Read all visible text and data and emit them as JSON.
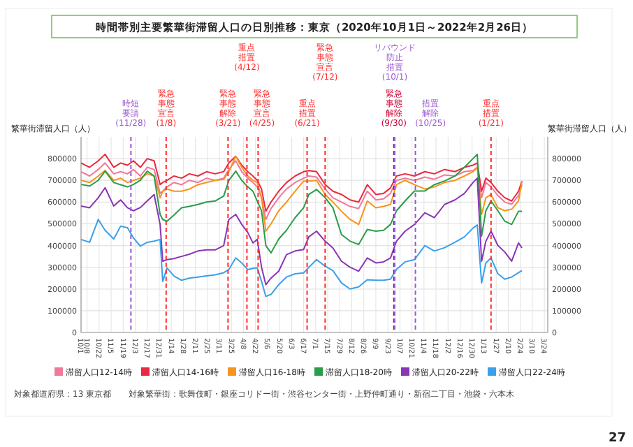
{
  "chart_data": {
    "type": "line",
    "title": "時間帯別主要繁華街滞留人口の日別推移：東京（2020年10月1日～2022年2月26日）",
    "ylabel": "繁華街滞留人口（人）",
    "y2label": "繁華街滞留人口（人）",
    "x": [
      "2020-10-01",
      "2020-10-11",
      "2020-10-21",
      "2020-10-29",
      "2020-11-08",
      "2020-11-16",
      "2020-11-24",
      "2020-12-01",
      "2020-12-09",
      "2020-12-17",
      "2020-12-25",
      "2021-01-01",
      "2021-01-04",
      "2021-01-09",
      "2021-01-17",
      "2021-01-26",
      "2021-02-04",
      "2021-02-14",
      "2021-02-24",
      "2021-03-06",
      "2021-03-16",
      "2021-03-22",
      "2021-03-30",
      "2021-04-06",
      "2021-04-13",
      "2021-04-19",
      "2021-04-24",
      "2021-04-29",
      "2021-05-04",
      "2021-05-10",
      "2021-05-19",
      "2021-05-28",
      "2021-06-07",
      "2021-06-17",
      "2021-06-23",
      "2021-07-02",
      "2021-07-12",
      "2021-07-21",
      "2021-07-31",
      "2021-08-10",
      "2021-08-20",
      "2021-08-30",
      "2021-09-09",
      "2021-09-18",
      "2021-09-26",
      "2021-10-03",
      "2021-10-13",
      "2021-10-24",
      "2021-11-05",
      "2021-11-16",
      "2021-11-28",
      "2021-12-10",
      "2021-12-21",
      "2021-12-31",
      "2022-01-05",
      "2022-01-10",
      "2022-01-15",
      "2022-01-21",
      "2022-01-29",
      "2022-02-06",
      "2022-02-14",
      "2022-02-22",
      "2022-02-26"
    ],
    "series": [
      {
        "name": "滞留人口12-14時",
        "color": "#f0789a",
        "values": [
          740000,
          720000,
          750000,
          780000,
          730000,
          740000,
          730000,
          750000,
          720000,
          760000,
          750000,
          640000,
          650000,
          670000,
          690000,
          680000,
          700000,
          690000,
          710000,
          700000,
          710000,
          750000,
          790000,
          740000,
          710000,
          690000,
          670000,
          620000,
          520000,
          570000,
          620000,
          660000,
          690000,
          710000,
          720000,
          715000,
          660000,
          620000,
          600000,
          580000,
          570000,
          650000,
          610000,
          615000,
          640000,
          700000,
          710000,
          700000,
          715000,
          705000,
          725000,
          720000,
          740000,
          745000,
          760000,
          620000,
          690000,
          670000,
          630000,
          600000,
          590000,
          630000,
          680000
        ]
      },
      {
        "name": "滞留人口14-16時",
        "color": "#e8293f",
        "values": [
          780000,
          760000,
          790000,
          820000,
          760000,
          780000,
          770000,
          790000,
          760000,
          800000,
          790000,
          681000,
          690000,
          700000,
          720000,
          710000,
          730000,
          720000,
          740000,
          730000,
          740000,
          780000,
          811000,
          770000,
          740000,
          720000,
          700000,
          660000,
          558000,
          600000,
          650000,
          690000,
          720000,
          740000,
          745000,
          740000,
          681000,
          650000,
          635000,
          610000,
          600000,
          680000,
          635000,
          640000,
          665000,
          720000,
          730000,
          720000,
          740000,
          730000,
          750000,
          740000,
          760000,
          770000,
          780000,
          650000,
          710000,
          690000,
          650000,
          620000,
          605000,
          650000,
          697000
        ]
      },
      {
        "name": "滞留人口16-18時",
        "color": "#f7931e",
        "values": [
          700000,
          690000,
          720000,
          746000,
          700000,
          710000,
          690000,
          700000,
          710000,
          730000,
          720000,
          620000,
          650000,
          660000,
          650000,
          650000,
          660000,
          680000,
          690000,
          700000,
          705000,
          740000,
          811000,
          760000,
          720000,
          700000,
          690000,
          620000,
          466000,
          500000,
          560000,
          600000,
          650000,
          697000,
          697000,
          700000,
          635000,
          600000,
          558000,
          520000,
          497000,
          605000,
          574000,
          580000,
          589000,
          680000,
          700000,
          680000,
          660000,
          670000,
          690000,
          700000,
          720000,
          740000,
          760000,
          543000,
          620000,
          635000,
          574000,
          560000,
          567000,
          605000,
          697000
        ]
      },
      {
        "name": "滞留人口18-20時",
        "color": "#2a9d4a",
        "values": [
          681000,
          674000,
          700000,
          742000,
          690000,
          680000,
          670000,
          681000,
          700000,
          742000,
          720000,
          543000,
          520000,
          512000,
          540000,
          574000,
          580000,
          589000,
          600000,
          605000,
          628000,
          700000,
          742000,
          700000,
          670000,
          650000,
          605000,
          560000,
          400000,
          366000,
          430000,
          470000,
          528000,
          574000,
          635000,
          658000,
          620000,
          574000,
          451000,
          420000,
          405000,
          474000,
          466000,
          470000,
          497000,
          560000,
          605000,
          651000,
          651000,
          680000,
          697000,
          720000,
          760000,
          800000,
          820000,
          443000,
          560000,
          605000,
          560000,
          512000,
          497000,
          558000,
          558000
        ]
      },
      {
        "name": "滞留人口20-22時",
        "color": "#8a35b5",
        "values": [
          582000,
          574000,
          620000,
          666000,
          582000,
          610000,
          574000,
          560000,
          575000,
          605000,
          635000,
          497000,
          328000,
          335000,
          340000,
          350000,
          360000,
          375000,
          380000,
          380000,
          400000,
          520000,
          543000,
          497000,
          460000,
          412000,
          428000,
          300000,
          220000,
          250000,
          282000,
          358000,
          375000,
          382000,
          440000,
          466000,
          420000,
          389000,
          328000,
          300000,
          282000,
          343000,
          320000,
          325000,
          343000,
          420000,
          466000,
          497000,
          551000,
          528000,
          589000,
          610000,
          640000,
          690000,
          710000,
          328000,
          420000,
          466000,
          400000,
          370000,
          328000,
          412000,
          389000
        ]
      },
      {
        "name": "滞留人口22-24時",
        "color": "#3aa0ea",
        "values": [
          428000,
          415000,
          520000,
          470000,
          430000,
          489000,
          482000,
          435000,
          397000,
          415000,
          420000,
          428000,
          235000,
          297000,
          260000,
          240000,
          250000,
          255000,
          260000,
          265000,
          275000,
          290000,
          343000,
          320000,
          289000,
          295000,
          297000,
          235000,
          166000,
          175000,
          220000,
          255000,
          270000,
          274000,
          300000,
          335000,
          305000,
          285000,
          228000,
          200000,
          210000,
          243000,
          240000,
          240000,
          245000,
          290000,
          325000,
          335000,
          400000,
          375000,
          390000,
          415000,
          440000,
          480000,
          495000,
          228000,
          320000,
          343000,
          270000,
          245000,
          255000,
          275000,
          285000
        ]
      }
    ],
    "xlim": [
      "2020-10-01",
      "2022-03-28"
    ],
    "xticks": [
      {
        "value": "2020-10-01",
        "label": "10/1"
      },
      {
        "value": "2020-10-08",
        "label": "10/8"
      },
      {
        "value": "2020-10-22",
        "label": "10/22"
      },
      {
        "value": "2020-11-05",
        "label": "11/5"
      },
      {
        "value": "2020-11-19",
        "label": "11/19"
      },
      {
        "value": "2020-12-03",
        "label": "12/3"
      },
      {
        "value": "2020-12-17",
        "label": "12/17"
      },
      {
        "value": "2020-12-31",
        "label": "12/31"
      },
      {
        "value": "2021-01-14",
        "label": "1/14"
      },
      {
        "value": "2021-01-28",
        "label": "1/28"
      },
      {
        "value": "2021-02-11",
        "label": "2/11"
      },
      {
        "value": "2021-02-25",
        "label": "2/25"
      },
      {
        "value": "2021-03-11",
        "label": "3/11"
      },
      {
        "value": "2021-03-25",
        "label": "3/25"
      },
      {
        "value": "2021-04-08",
        "label": "4/8"
      },
      {
        "value": "2021-04-22",
        "label": "4/22"
      },
      {
        "value": "2021-05-06",
        "label": "5/6"
      },
      {
        "value": "2021-05-20",
        "label": "5/20"
      },
      {
        "value": "2021-06-03",
        "label": "6/3"
      },
      {
        "value": "2021-06-17",
        "label": "6/17"
      },
      {
        "value": "2021-07-01",
        "label": "7/1"
      },
      {
        "value": "2021-07-15",
        "label": "7/15"
      },
      {
        "value": "2021-07-29",
        "label": "7/29"
      },
      {
        "value": "2021-08-12",
        "label": "8/12"
      },
      {
        "value": "2021-08-26",
        "label": "8/26"
      },
      {
        "value": "2021-09-09",
        "label": "9/9"
      },
      {
        "value": "2021-09-23",
        "label": "9/23"
      },
      {
        "value": "2021-10-07",
        "label": "10/7"
      },
      {
        "value": "2021-10-21",
        "label": "10/21"
      },
      {
        "value": "2021-11-04",
        "label": "11/4"
      },
      {
        "value": "2021-11-18",
        "label": "11/18"
      },
      {
        "value": "2021-12-02",
        "label": "12/2"
      },
      {
        "value": "2021-12-16",
        "label": "12/16"
      },
      {
        "value": "2021-12-30",
        "label": "12/30"
      },
      {
        "value": "2022-01-13",
        "label": "1/13"
      },
      {
        "value": "2022-01-27",
        "label": "1/27"
      },
      {
        "value": "2022-02-10",
        "label": "2/10"
      },
      {
        "value": "2022-02-24",
        "label": "2/24"
      },
      {
        "value": "2022-03-10",
        "label": "3/10"
      },
      {
        "value": "2022-03-24",
        "label": "3/24"
      }
    ],
    "ylim": [
      0,
      900000
    ],
    "yticks": [
      0,
      100000,
      200000,
      300000,
      400000,
      500000,
      600000,
      700000,
      800000
    ],
    "y2lim": [
      0,
      900000
    ],
    "y2ticks": [
      0,
      100000,
      200000,
      300000,
      400000,
      500000,
      600000,
      700000,
      800000
    ],
    "grid": true,
    "legend": "bottom",
    "marker": "none",
    "line_style": "solid",
    "ref_lines": [
      {
        "axis": "x",
        "value": "2020-11-28",
        "label": "時短要請(11/28)",
        "color": "#9b59d0",
        "line_style": "dashed"
      },
      {
        "axis": "x",
        "value": "2021-01-08",
        "label": "緊急事態宣言(1/8)",
        "color": "#ff2a2a",
        "line_style": "dashed"
      },
      {
        "axis": "x",
        "value": "2021-03-21",
        "label": "緊急事態解除(3/21)",
        "color": "#ff2a2a",
        "line_style": "dashed"
      },
      {
        "axis": "x",
        "value": "2021-04-12",
        "label": "重点措置(4/12)",
        "color": "#ff2a2a",
        "line_style": "dashed"
      },
      {
        "axis": "x",
        "value": "2021-04-25",
        "label": "緊急事態宣言(4/25)",
        "color": "#ff2a2a",
        "line_style": "dashed"
      },
      {
        "axis": "x",
        "value": "2021-06-21",
        "label": "重点措置(6/21)",
        "color": "#ff2a2a",
        "line_style": "dashed"
      },
      {
        "axis": "x",
        "value": "2021-07-12",
        "label": "緊急事態宣言(7/12)",
        "color": "#ff2a2a",
        "line_style": "dashed"
      },
      {
        "axis": "x",
        "value": "2021-09-30",
        "label": "緊急事態解除(9/30)",
        "color": "#cc0033",
        "line_style": "dashed"
      },
      {
        "axis": "x",
        "value": "2021-10-01",
        "label": "リバウンド防止措置(10/1)",
        "color": "#9b59d0",
        "line_style": "dashed"
      },
      {
        "axis": "x",
        "value": "2021-10-25",
        "label": "措置解除(10/25)",
        "color": "#9b59d0",
        "line_style": "dashed"
      },
      {
        "axis": "x",
        "value": "2022-01-21",
        "label": "重点措置(1/21)",
        "color": "#ff2a2a",
        "line_style": "dashed"
      }
    ],
    "annotations": [
      "対象都道府県：13 東京都",
      "対象繁華街：歌舞伎町・銀座コリドー街・渋谷センター街・上野仲町通り・新宿二丁目・池袋・六本木",
      "27"
    ]
  }
}
